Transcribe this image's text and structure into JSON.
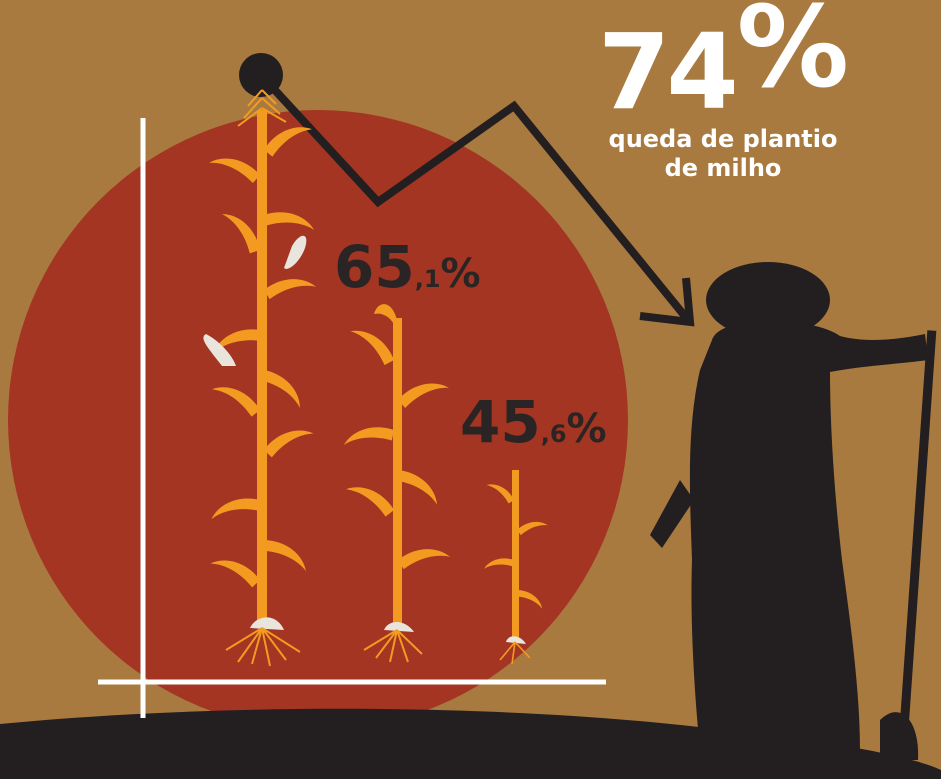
{
  "headline": {
    "value": "74",
    "symbol": "%"
  },
  "caption": {
    "line1": "queda de plantio",
    "line2": "de milho"
  },
  "stats": [
    {
      "main": "65",
      "decimal": ",1",
      "symbol": "%"
    },
    {
      "main": "45",
      "decimal": ",6",
      "symbol": "%"
    }
  ],
  "colors": {
    "background": "#a97a3f",
    "circle": "#a33522",
    "corn": "#f39a21",
    "silhouette": "#231f20",
    "text_dark": "#2a2524",
    "text_light": "#ffffff"
  },
  "icons": [
    "farmer-silhouette-icon",
    "corn-plant-icon",
    "trend-arrow-icon"
  ]
}
